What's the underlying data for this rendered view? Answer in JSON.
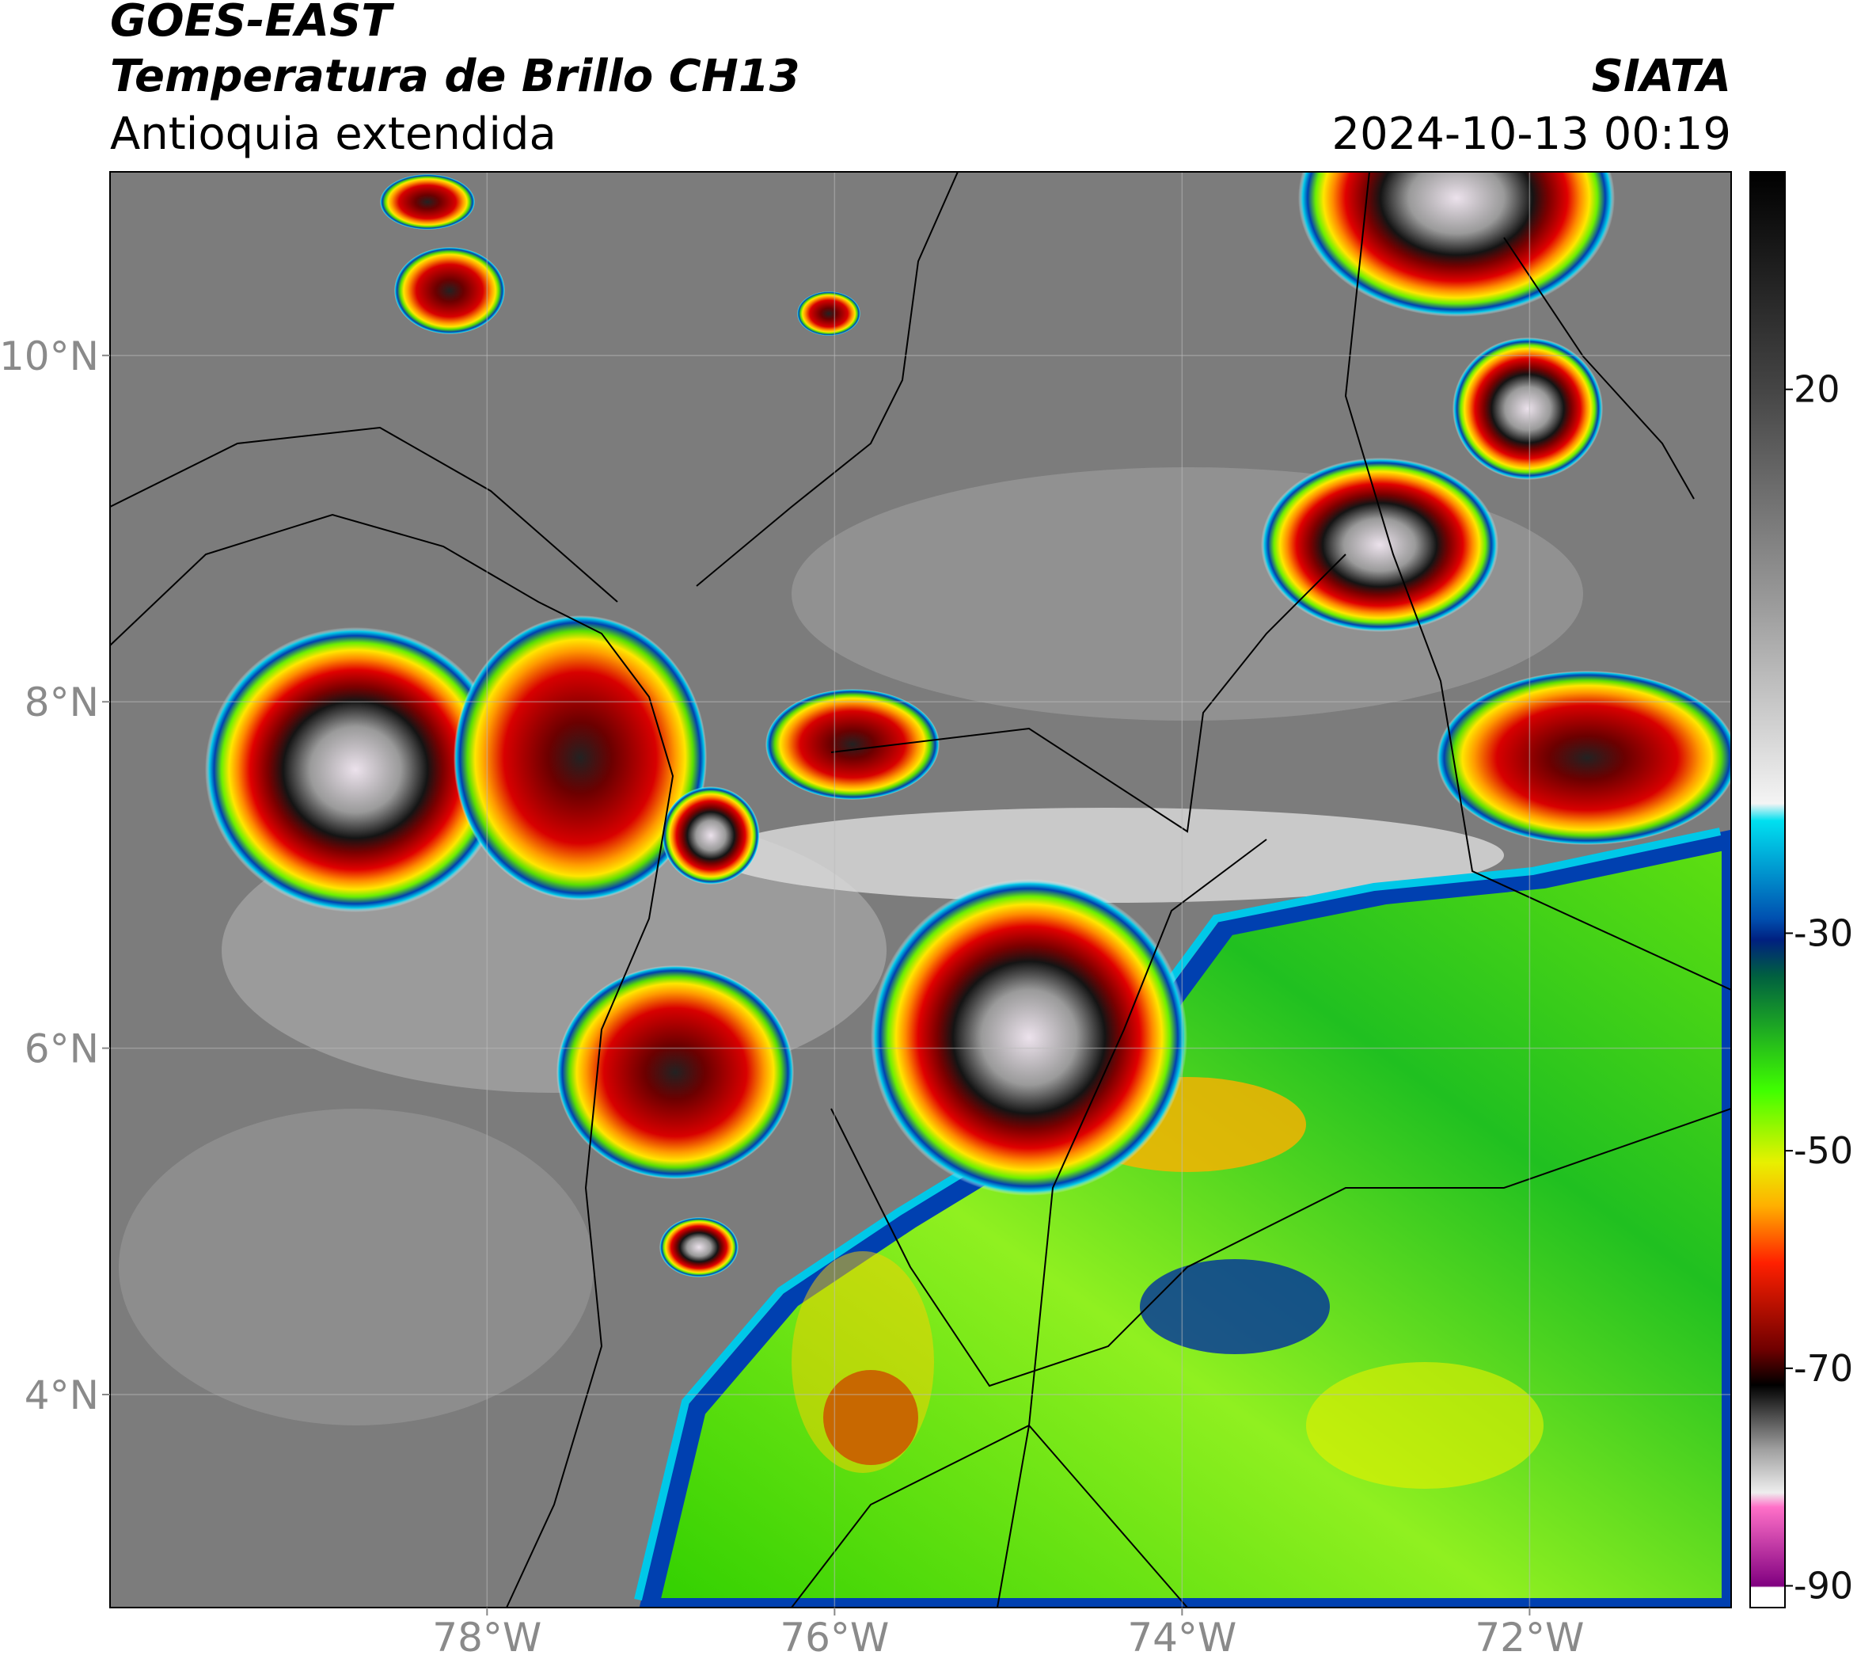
{
  "header": {
    "satellite": "GOES-EAST",
    "product": "Temperatura de Brillo CH13",
    "region": "Antioquia extendida",
    "source": "SIATA",
    "datetime": "2024-10-13 00:19"
  },
  "map": {
    "lon_range": [
      -80.17,
      -70.84
    ],
    "lat_range": [
      2.77,
      11.06
    ],
    "lon_ticks": [
      {
        "value": -78,
        "label": "78°W"
      },
      {
        "value": -76,
        "label": "76°W"
      },
      {
        "value": -74,
        "label": "74°W"
      },
      {
        "value": -72,
        "label": "72°W"
      }
    ],
    "lat_ticks": [
      {
        "value": 10,
        "label": "10°N"
      },
      {
        "value": 8,
        "label": "8°N"
      },
      {
        "value": 6,
        "label": "6°N"
      },
      {
        "value": 4,
        "label": "4°N"
      }
    ]
  },
  "colorbar": {
    "range": [
      -92,
      40
    ],
    "ticks": [
      20,
      -30,
      -50,
      -70,
      -90
    ]
  }
}
